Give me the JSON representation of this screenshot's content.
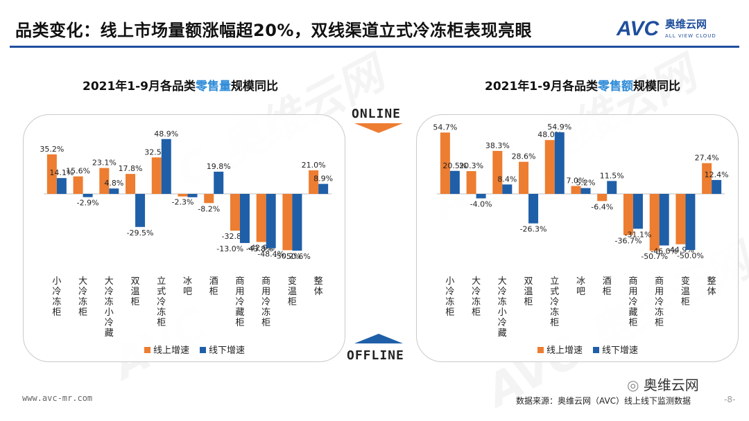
{
  "header": {
    "title": "品类变化：线上市场量额涨幅超20%，双线渠道立式冷冻柜表现亮眼",
    "logo_text": "AVC",
    "logo_cn": "奥维云网",
    "logo_sub": "ALL VIEW CLOUD"
  },
  "badges": {
    "online": "ONLINE",
    "offline": "OFFLINE"
  },
  "colors": {
    "online": "#ed7d31",
    "offline": "#1f5fa8",
    "accent": "#1f4e9c",
    "highlight": "#2e8bd8"
  },
  "footer": {
    "url": "www.avc-mr.com",
    "source": "数据来源：奥维云网（AVC）线上线下监测数据",
    "wechat": "奥维云网",
    "page": "-8-"
  },
  "chart_data": [
    {
      "type": "bar",
      "title_prefix": "2021年1-9月各品类",
      "title_highlight": "零售量",
      "title_suffix": "规模同比",
      "categories": [
        "小冷冻柜",
        "大冷冻柜",
        "大冷冻小冷藏",
        "双温柜",
        "立式冷冻柜",
        "冰吧",
        "酒柜",
        "商用冷藏柜",
        "商用冷冻柜",
        "变温柜",
        "整体"
      ],
      "series": [
        {
          "name": "线上增速",
          "values": [
            35.2,
            15.6,
            23.1,
            17.8,
            32.5,
            -2.3,
            -8.2,
            -32.8,
            -42.9,
            -50.2,
            21.0
          ],
          "labels": [
            "35.2%",
            "15.6%",
            "23.1%",
            "17.8%",
            "32.5%",
            "-2.3%",
            "-8.2%",
            "-32.8%",
            "-42.9%",
            "-50.2%",
            "21.0%"
          ]
        },
        {
          "name": "线下增速",
          "values": [
            14.1,
            -2.9,
            4.8,
            -29.5,
            48.9,
            -3.0,
            19.8,
            -43.8,
            -48.4,
            -50.6,
            8.9
          ],
          "labels": [
            "14.1%",
            "-2.9%",
            "4.8%",
            "-29.5%",
            "48.9%",
            "",
            "19.8%",
            "-13.0% -43.8%",
            "-48.4%",
            "-50.6%",
            "8.9%"
          ]
        }
      ]
    },
    {
      "type": "bar",
      "title_prefix": "2021年1-9月各品类",
      "title_highlight": "零售额",
      "title_suffix": "规模同比",
      "categories": [
        "小冷冻柜",
        "大冷冻柜",
        "大冷冻小冷藏",
        "双温柜",
        "立式冷冻柜",
        "冰吧",
        "酒柜",
        "商用冷藏柜",
        "商用冷冻柜",
        "变温柜",
        "整体"
      ],
      "series": [
        {
          "name": "线上增速",
          "values": [
            54.7,
            20.3,
            38.3,
            28.6,
            48.0,
            7.0,
            -6.4,
            -36.7,
            -50.7,
            -44.9,
            27.4
          ],
          "labels": [
            "54.7%",
            "20.3%",
            "38.3%",
            "28.6%",
            "48.0%",
            "7.0%",
            "-6.4%",
            "-36.7%",
            "-50.7%",
            "-44.9%",
            "27.4%"
          ]
        },
        {
          "name": "线下增速",
          "values": [
            20.5,
            -4.0,
            8.4,
            -26.3,
            54.9,
            5.2,
            11.5,
            -31.1,
            -46.0,
            -50.0,
            12.4
          ],
          "labels": [
            "20.5%",
            "-4.0%",
            "8.4%",
            "-26.3%",
            "54.9%",
            "5.2%",
            "11.5%",
            "-31.1%",
            "-46.0%",
            "-50.0%",
            "12.4%"
          ]
        }
      ]
    }
  ]
}
